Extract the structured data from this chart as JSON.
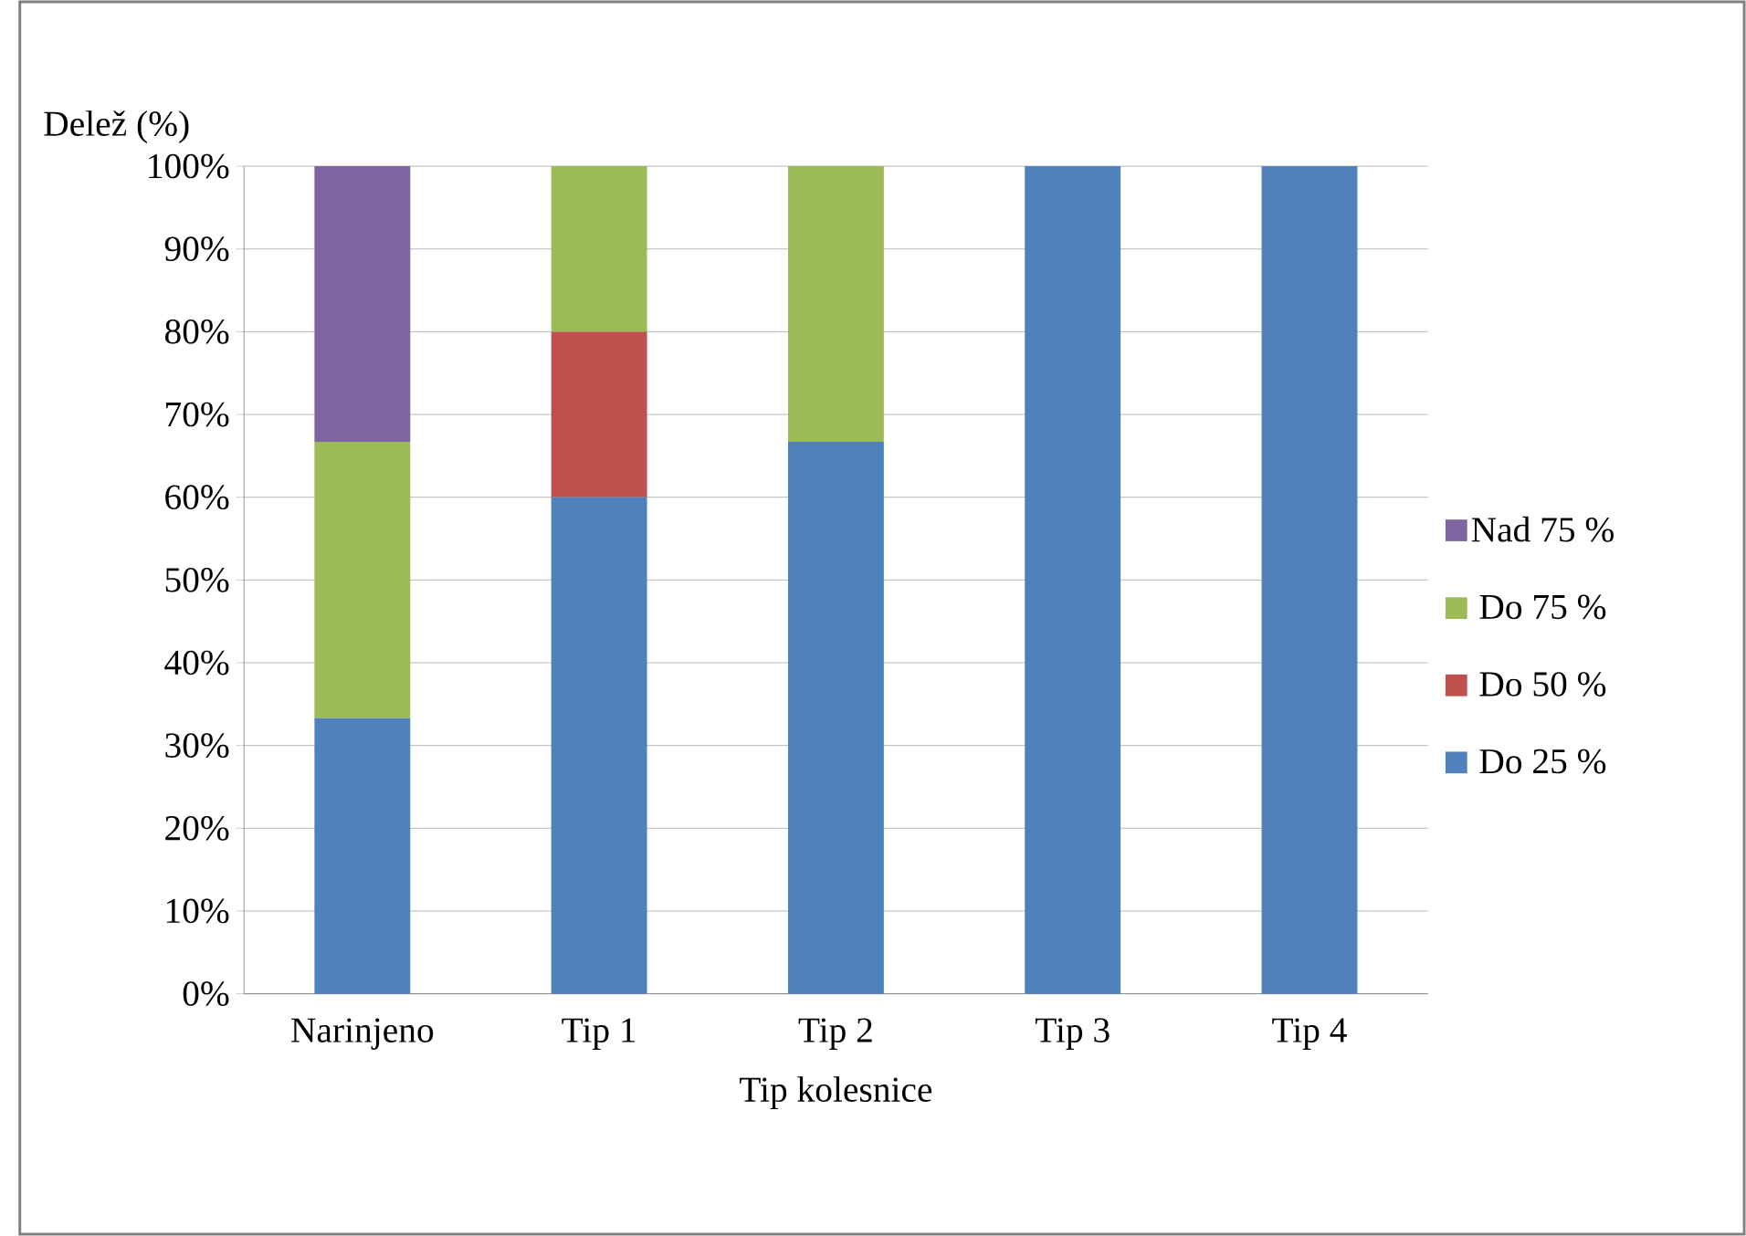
{
  "chart_data": {
    "type": "bar",
    "stacked": true,
    "xlabel": "Tip kolesnice",
    "ylabel": "Delež (%)",
    "categories": [
      "Narinjeno",
      "Tip 1",
      "Tip 2",
      "Tip 3",
      "Tip 4"
    ],
    "series": [
      {
        "name": "Do 25 %",
        "color": "#4f81bd",
        "values": [
          33.3,
          60,
          66.7,
          100,
          100
        ]
      },
      {
        "name": "Do 50 %",
        "color": "#c0504d",
        "values": [
          0,
          20,
          0,
          0,
          0
        ]
      },
      {
        "name": "Do 75 %",
        "color": "#9bbb59",
        "values": [
          33.4,
          20,
          33.3,
          0,
          0
        ]
      },
      {
        "name": "Nad 75 %",
        "color": "#8064a2",
        "values": [
          33.3,
          0,
          0,
          0,
          0
        ]
      }
    ],
    "ylim": [
      0,
      100
    ],
    "yticks": [
      {
        "value": 0,
        "label": "0%"
      },
      {
        "value": 10,
        "label": "10%"
      },
      {
        "value": 20,
        "label": "20%"
      },
      {
        "value": 30,
        "label": "30%"
      },
      {
        "value": 40,
        "label": "40%"
      },
      {
        "value": 50,
        "label": "50%"
      },
      {
        "value": 60,
        "label": "60%"
      },
      {
        "value": 70,
        "label": "70%"
      },
      {
        "value": 80,
        "label": "80%"
      },
      {
        "value": 90,
        "label": "90%"
      },
      {
        "value": 100,
        "label": "100%"
      }
    ],
    "grid": "y",
    "legend": "right"
  }
}
